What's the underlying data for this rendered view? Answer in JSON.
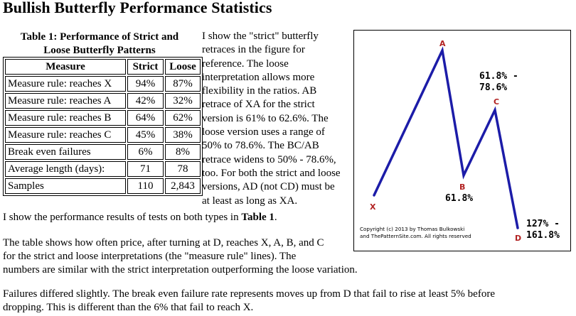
{
  "page": {
    "title": "Bullish Butterfly Performance Statistics"
  },
  "table": {
    "caption_line1": "Table 1: Performance of Strict and",
    "caption_line2": "Loose Butterfly Patterns",
    "headers": [
      "Measure",
      "Strict",
      "Loose"
    ],
    "rows": [
      [
        "Measure rule: reaches X",
        "94%",
        "87%"
      ],
      [
        "Measure rule: reaches A",
        "42%",
        "32%"
      ],
      [
        "Measure rule: reaches B",
        "64%",
        "62%"
      ],
      [
        "Measure rule: reaches C",
        "45%",
        "38%"
      ],
      [
        "Break even failures",
        "6%",
        "8%"
      ],
      [
        "Average length (days):",
        "71",
        "78"
      ],
      [
        "Samples",
        "110",
        "2,843"
      ]
    ]
  },
  "side_text": {
    "lines": [
      "I show the \"strict\" butterfly",
      "retraces in the figure for",
      "reference. The loose",
      "interpretation allows more",
      "flexibility in the ratios. AB",
      "retrace of XA for the strict",
      "version is 61% to 62.6%. The",
      "loose version uses a range of",
      "50% to 78.6%. The BC/AB",
      "retrace widens to 50% - 78.6%,",
      "too. For both the strict and loose",
      "versions, AD (not CD) must be",
      "at least as long as XA."
    ]
  },
  "paragraphs": {
    "p1_text": "I show the performance results of tests on both types in ",
    "p1_bold": "Table 1",
    "p1_end": ".",
    "p2_line1": "The table shows how often price, after turning at D, reaches X, A, B, and C",
    "p2_line2": "for the strict and loose interpretations (the \"measure rule\" lines). The",
    "p2_line3": "numbers are similar with the strict interpretation outperforming the loose variation.",
    "p3_line1": "Failures differed slightly. The break even failure rate represents moves up from D that fail to rise at least 5% before",
    "p3_line2": "dropping. This is different than the 6% that fail to reach X."
  },
  "figure": {
    "line_color": "#1c1ca8",
    "point_label_color": "#b22222",
    "points": [
      {
        "label": "X"
      },
      {
        "label": "A"
      },
      {
        "label": "B"
      },
      {
        "label": "C"
      },
      {
        "label": "D"
      }
    ],
    "ratio_bc_line1": "61.8% -",
    "ratio_bc_line2": "78.6%",
    "ratio_ab": "61.8%",
    "ratio_ad_line1": "127% -",
    "ratio_ad_line2": "161.8%",
    "copyright_line1": "Copyright (c) 2013 by Thomas Bulkowski",
    "copyright_line2": "and ThePatternSite.com. All rights reserved"
  }
}
